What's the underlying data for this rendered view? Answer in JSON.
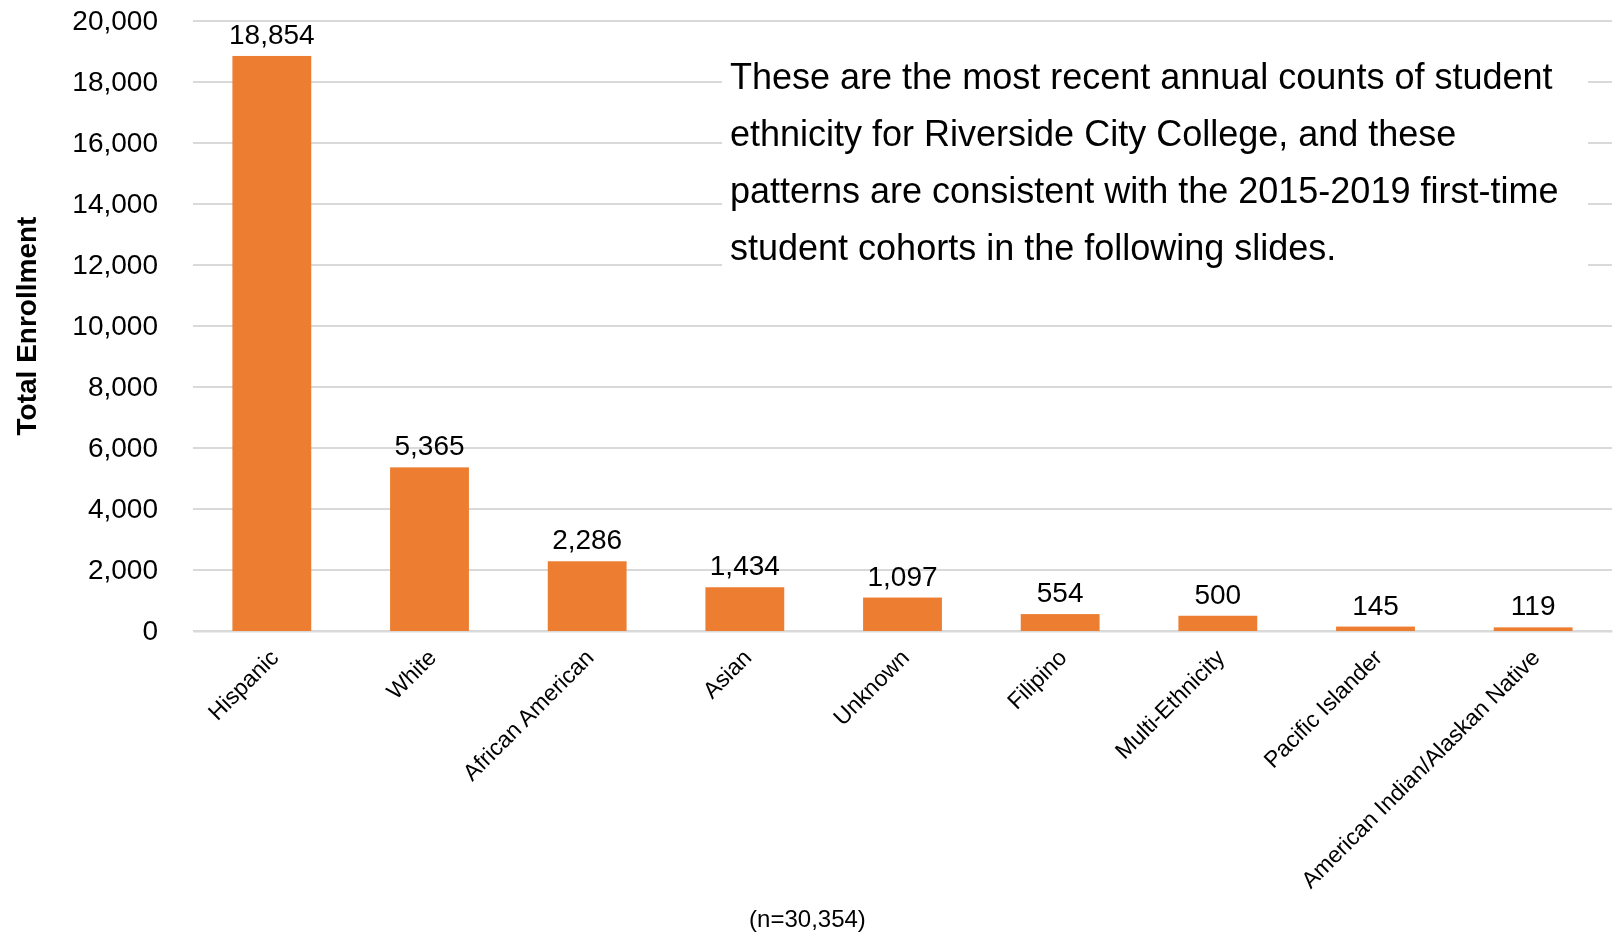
{
  "chart_data": {
    "type": "bar",
    "ylabel": "Total Enrollment",
    "categories": [
      "Hispanic",
      "White",
      "African American",
      "Asian",
      "Unknown",
      "Filipino",
      "Multi-Ethnicity",
      "Pacific Islander",
      "American Indian/Alaskan Native"
    ],
    "values": [
      18854,
      5365,
      2286,
      1434,
      1097,
      554,
      500,
      145,
      119
    ],
    "value_labels": [
      "18,854",
      "5,365",
      "2,286",
      "1,434",
      "1,097",
      "554",
      "500",
      "145",
      "119"
    ],
    "color": "#ed7d31",
    "grid": "y",
    "ylim": [
      0,
      20000
    ],
    "yticks": [
      0,
      {
        "value": 2000,
        "label": "2,000"
      },
      {
        "value": 4000,
        "label": "4,000"
      },
      {
        "value": 6000,
        "label": "6,000"
      },
      {
        "value": 8000,
        "label": "8,000"
      },
      {
        "value": 10000,
        "label": "10,000"
      },
      {
        "value": 12000,
        "label": "12,000"
      },
      {
        "value": 14000,
        "label": "14,000"
      },
      {
        "value": 16000,
        "label": "16,000"
      },
      {
        "value": 18000,
        "label": "18,000"
      },
      {
        "value": 20000,
        "label": "20,000"
      }
    ],
    "annotations": [
      "These are the most recent annual counts of student ethnicity for Riverside City College, and these patterns are consistent with the 2015-2019 first-time student cohorts in the following slides.",
      "(n=30,354)"
    ]
  }
}
